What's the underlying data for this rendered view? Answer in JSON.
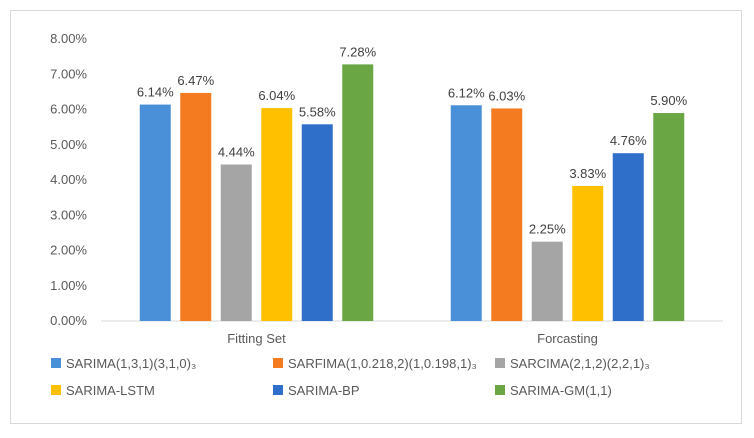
{
  "chart_data": {
    "type": "bar",
    "title": "",
    "xlabel": "",
    "ylabel": "",
    "categories": [
      "Fitting Set",
      "Forcasting"
    ],
    "ylim": [
      0,
      8
    ],
    "yticks": [
      "0.00%",
      "1.00%",
      "2.00%",
      "3.00%",
      "4.00%",
      "5.00%",
      "6.00%",
      "7.00%",
      "8.00%"
    ],
    "grid": false,
    "legend_position": "bottom",
    "series": [
      {
        "name": "SARIMA(1,3,1)(3,1,0)₃",
        "color": "#4a90d9",
        "values": [
          6.14,
          6.12
        ],
        "labels": [
          "6.14%",
          "6.12%"
        ]
      },
      {
        "name": "SARFIMA(1,0.218,2)(1,0.198,1)₃",
        "color": "#f47b20",
        "values": [
          6.47,
          6.03
        ],
        "labels": [
          "6.47%",
          "6.03%"
        ]
      },
      {
        "name": "SARCIMA(2,1,2)(2,2,1)₃",
        "color": "#a5a5a5",
        "values": [
          4.44,
          2.25
        ],
        "labels": [
          "4.44%",
          "2.25%"
        ]
      },
      {
        "name": "SARIMA-LSTM",
        "color": "#ffc000",
        "values": [
          6.04,
          3.83
        ],
        "labels": [
          "6.04%",
          "3.83%"
        ]
      },
      {
        "name": "SARIMA-BP",
        "color": "#2f6ec9",
        "values": [
          5.58,
          4.76
        ],
        "labels": [
          "5.58%",
          "4.76%"
        ]
      },
      {
        "name": "SARIMA-GM(1,1)",
        "color": "#6aa644",
        "values": [
          7.28,
          5.9
        ],
        "labels": [
          "7.28%",
          "5.90%"
        ]
      }
    ]
  }
}
